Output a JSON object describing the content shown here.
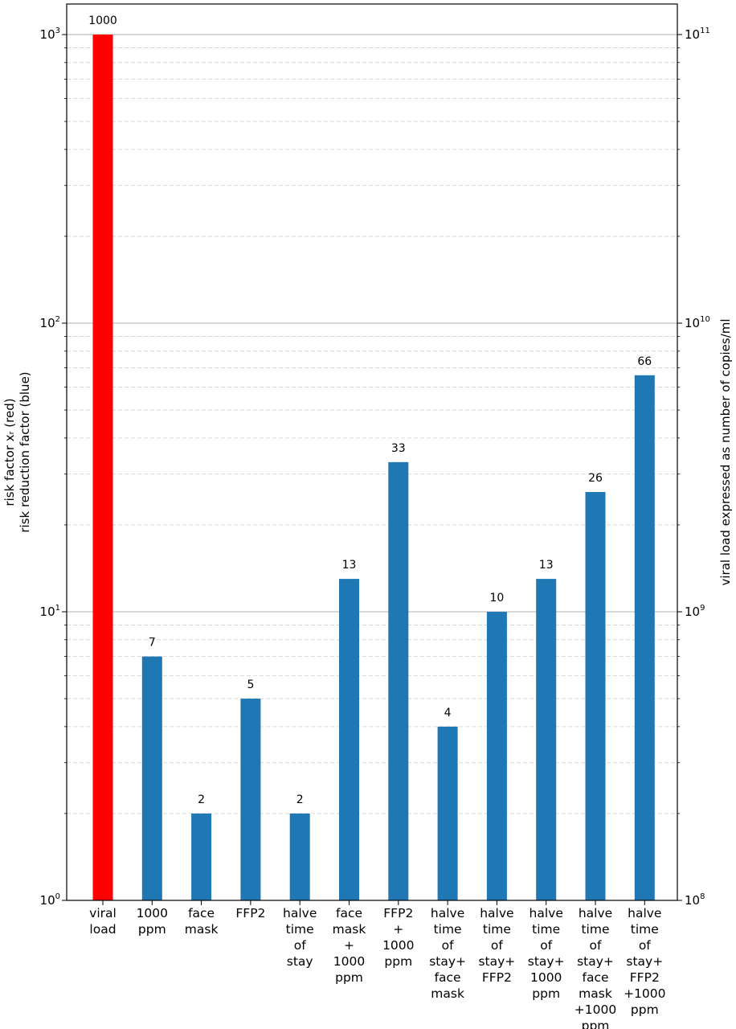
{
  "chart_data": {
    "type": "bar",
    "yscale": "log",
    "ylim": [
      1,
      1000
    ],
    "grid": true,
    "categories": [
      [
        "viral",
        "load"
      ],
      [
        "1000",
        "ppm"
      ],
      [
        "face",
        "mask"
      ],
      [
        "FFP2"
      ],
      [
        "halve",
        "time",
        "of",
        "stay"
      ],
      [
        "face",
        "mask",
        "+",
        "1000",
        "ppm"
      ],
      [
        "FFP2",
        "+",
        "1000",
        "ppm"
      ],
      [
        "halve",
        "time",
        "of",
        "stay+",
        "face",
        "mask"
      ],
      [
        "halve",
        "time",
        "of",
        "stay+",
        "FFP2"
      ],
      [
        "halve",
        "time",
        "of",
        "stay+",
        "1000",
        "ppm"
      ],
      [
        "halve",
        "time",
        "of",
        "stay+",
        "face",
        "mask",
        "+1000",
        "ppm"
      ],
      [
        "halve",
        "time",
        "of",
        "stay+",
        "FFP2",
        "+1000",
        "ppm"
      ]
    ],
    "values": [
      1000,
      7,
      2,
      5,
      2,
      13,
      33,
      4,
      10,
      13,
      26,
      66
    ],
    "labels": [
      "1000",
      "7",
      "2",
      "5",
      "2",
      "13",
      "33",
      "4",
      "10",
      "13",
      "26",
      "66"
    ],
    "colors": [
      "#ff0000",
      "#1f77b4",
      "#1f77b4",
      "#1f77b4",
      "#1f77b4",
      "#1f77b4",
      "#1f77b4",
      "#1f77b4",
      "#1f77b4",
      "#1f77b4",
      "#1f77b4",
      "#1f77b4"
    ],
    "ylabel": [
      "risk factor xᵣ (red)",
      "risk reduction factor (blue)"
    ],
    "y_left_ticks": [
      {
        "base": "10",
        "exp": "0",
        "value": 1
      },
      {
        "base": "10",
        "exp": "1",
        "value": 10
      },
      {
        "base": "10",
        "exp": "2",
        "value": 100
      },
      {
        "base": "10",
        "exp": "3",
        "value": 1000
      }
    ],
    "y2label": "viral load expressed as number of copies/ml",
    "y2lim": [
      100000000,
      100000000000
    ],
    "y_right_ticks": [
      {
        "base": "10",
        "exp": "8",
        "value": 100000000
      },
      {
        "base": "10",
        "exp": "9",
        "value": 1000000000
      },
      {
        "base": "10",
        "exp": "10",
        "value": 10000000000
      },
      {
        "base": "10",
        "exp": "11",
        "value": 100000000000
      }
    ]
  }
}
